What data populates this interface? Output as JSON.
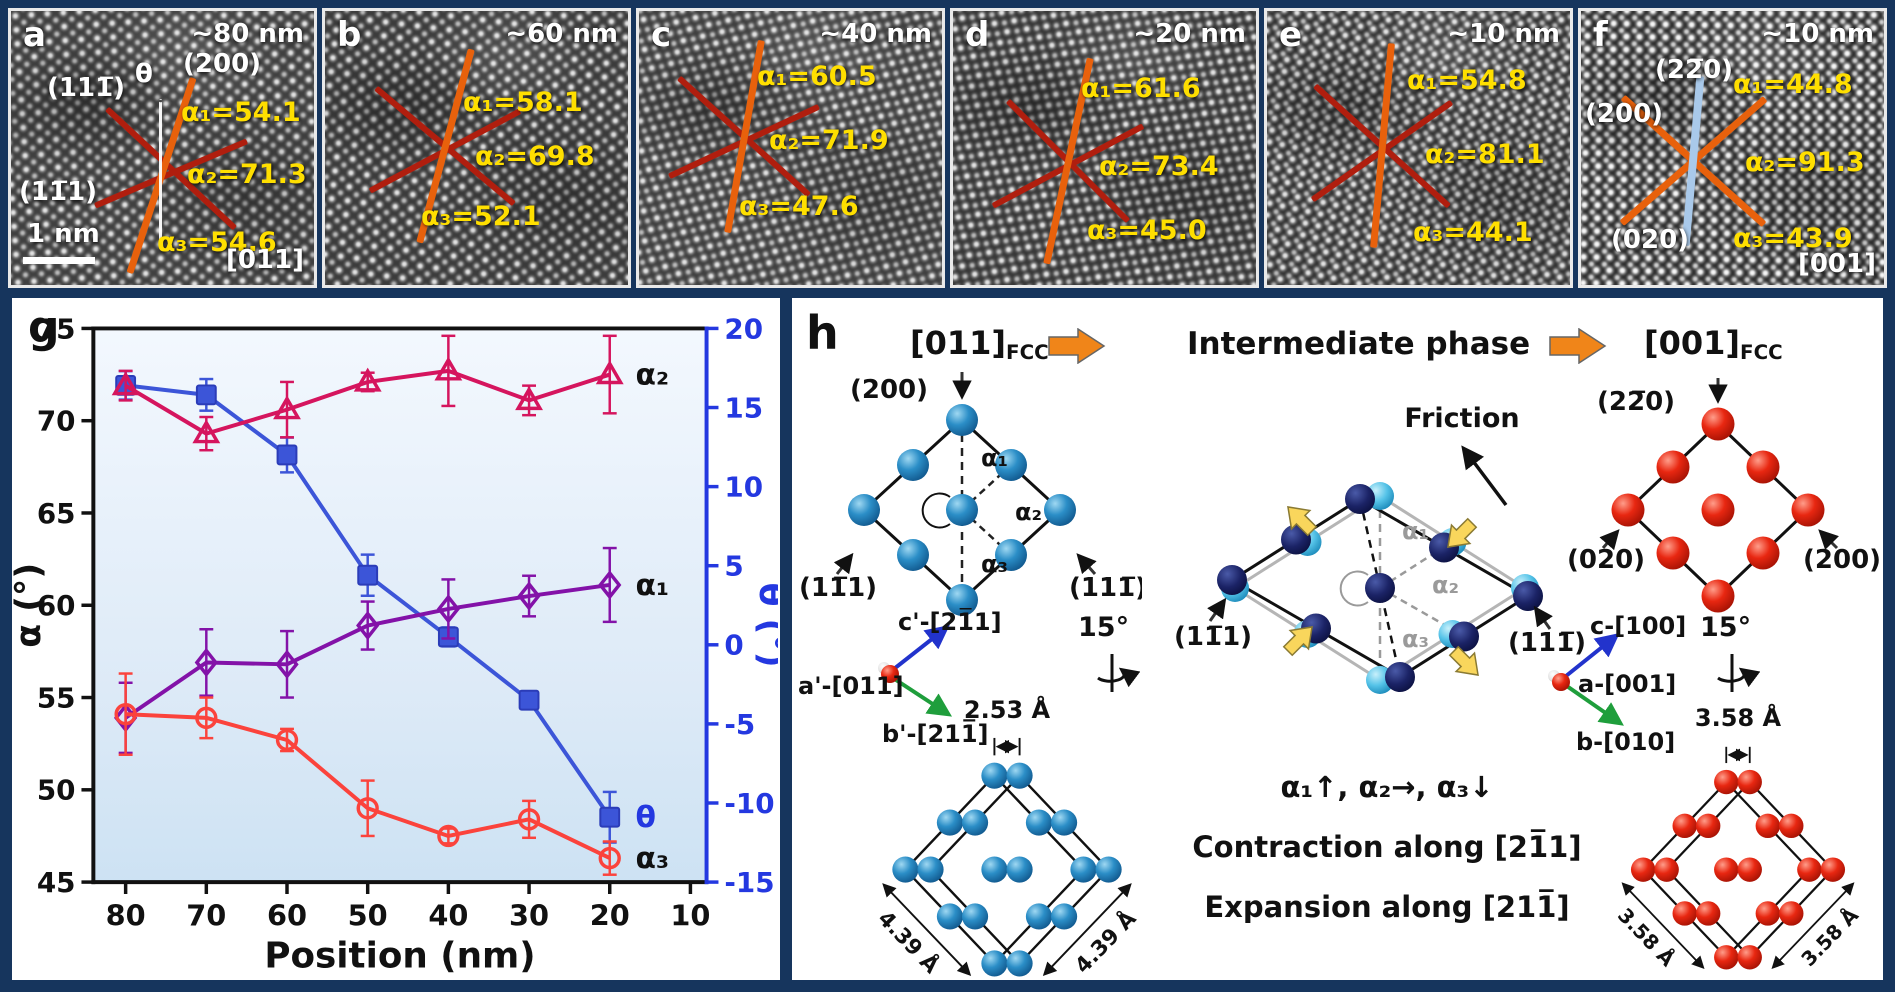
{
  "tem_panels": [
    {
      "letter": "a",
      "size": "~80 nm",
      "a1": "α₁=54.1",
      "a2": "α₂=71.3",
      "a3": "α₃=54.6",
      "plane_top": "(200)",
      "theta": "θ",
      "plane_upper": "(111̅)",
      "plane_lower": "(11̅1)",
      "scalebar": "1 nm",
      "zone": "[011]"
    },
    {
      "letter": "b",
      "size": "~60 nm",
      "a1": "α₁=58.1",
      "a2": "α₂=69.8",
      "a3": "α₃=52.1"
    },
    {
      "letter": "c",
      "size": "~40 nm",
      "a1": "α₁=60.5",
      "a2": "α₂=71.9",
      "a3": "α₃=47.6"
    },
    {
      "letter": "d",
      "size": "~20 nm",
      "a1": "α₁=61.6",
      "a2": "α₂=73.4",
      "a3": "α₃=45.0"
    },
    {
      "letter": "e",
      "size": "~10 nm",
      "a1": "α₁=54.8",
      "a2": "α₂=81.1",
      "a3": "α₃=44.1"
    },
    {
      "letter": "f",
      "size": "~10 nm",
      "a1": "α₁=44.8",
      "a2": "α₂=91.3",
      "a3": "α₃=43.9",
      "plane_top": "(22̅0)",
      "plane_left": "(200)",
      "plane_lower": "(020)",
      "zone": "[001]"
    }
  ],
  "chart_data": {
    "type": "line",
    "panel_label": "g",
    "xlabel": "Position (nm)",
    "ylabel_left": "α (°)",
    "ylabel_right": "θ (°)",
    "x": [
      80,
      70,
      60,
      50,
      40,
      30,
      20
    ],
    "x_ticks": [
      80,
      70,
      60,
      50,
      40,
      30,
      20,
      10
    ],
    "xlim": [
      84,
      8
    ],
    "ylim_left": [
      45,
      75
    ],
    "yticks_left": [
      45,
      50,
      55,
      60,
      65,
      70,
      75
    ],
    "ylim_right": [
      -15,
      20
    ],
    "yticks_right": [
      -15,
      -10,
      -5,
      0,
      5,
      10,
      15,
      20
    ],
    "grid": false,
    "legend_position": "end-labels",
    "axis_color_left": "#111111",
    "axis_color_right": "#2438e0",
    "series": [
      {
        "name": "θ",
        "axis": "right",
        "marker": "square",
        "color": "#3c55d8",
        "label_color": "#2438e0",
        "values": [
          16.4,
          15.8,
          12.0,
          4.4,
          0.5,
          -3.5,
          -10.9
        ],
        "errors": [
          0.9,
          1.0,
          1.1,
          1.3,
          0.6,
          0.5,
          1.6
        ]
      },
      {
        "name": "α₂",
        "axis": "left",
        "marker": "triangle",
        "color": "#d5155e",
        "label_color": "#111111",
        "values": [
          71.9,
          69.3,
          70.6,
          72.1,
          72.7,
          71.1,
          72.5
        ],
        "errors": [
          0.8,
          0.9,
          1.5,
          0.5,
          1.9,
          0.8,
          2.1
        ]
      },
      {
        "name": "α₁",
        "axis": "left",
        "marker": "diamond",
        "color": "#8312a8",
        "label_color": "#111111",
        "values": [
          53.9,
          56.9,
          56.8,
          58.9,
          59.8,
          60.5,
          61.1
        ],
        "errors": [
          1.9,
          1.8,
          1.8,
          1.3,
          1.6,
          1.1,
          2.0
        ]
      },
      {
        "name": "α₃",
        "axis": "left",
        "marker": "circle",
        "color": "#fb433c",
        "label_color": "#111111",
        "values": [
          54.1,
          53.9,
          52.7,
          49.0,
          47.5,
          48.4,
          46.3
        ],
        "errors": [
          2.2,
          1.1,
          0.6,
          1.5,
          0.4,
          1.0,
          0.9
        ]
      }
    ]
  },
  "panel_h": {
    "label": "h",
    "title_left": "[011]",
    "sub_left": "FCC",
    "title_mid": "Intermediate phase",
    "title_right": "[001]",
    "sub_right": "FCC",
    "friction": "Friction",
    "left": {
      "plane_top": "(200)",
      "plane_left": "(11̅1)",
      "plane_right": "(111̅)",
      "a1": "α₁",
      "a2": "α₂",
      "a3": "α₃",
      "rot": "15°",
      "axis_c": "c'-[21̅1]",
      "axis_a": "a'-[011]",
      "axis_b": "b'-[211̅]",
      "dim_top": "2.53 Å",
      "dim_bl": "4.39 Å",
      "dim_br": "4.39 Å"
    },
    "mid": {
      "plane_left": "(11̅1)",
      "plane_right": "(111̅)",
      "a1": "α₁",
      "a2": "α₂",
      "a3": "α₃",
      "line1": "α₁↑, α₂→, α₃↓",
      "line2": "Contraction along [21̅1]",
      "line3": "Expansion along [211̅]"
    },
    "right": {
      "plane_top": "(22̅0)",
      "plane_left": "(020)",
      "plane_right": "(200)",
      "rot": "15°",
      "axis_c": "c-[100]",
      "axis_a": "a-[001]",
      "axis_b": "b-[010]",
      "dim_top": "3.58 Å",
      "dim_bl": "3.58 Å",
      "dim_br": "3.58 Å"
    }
  }
}
